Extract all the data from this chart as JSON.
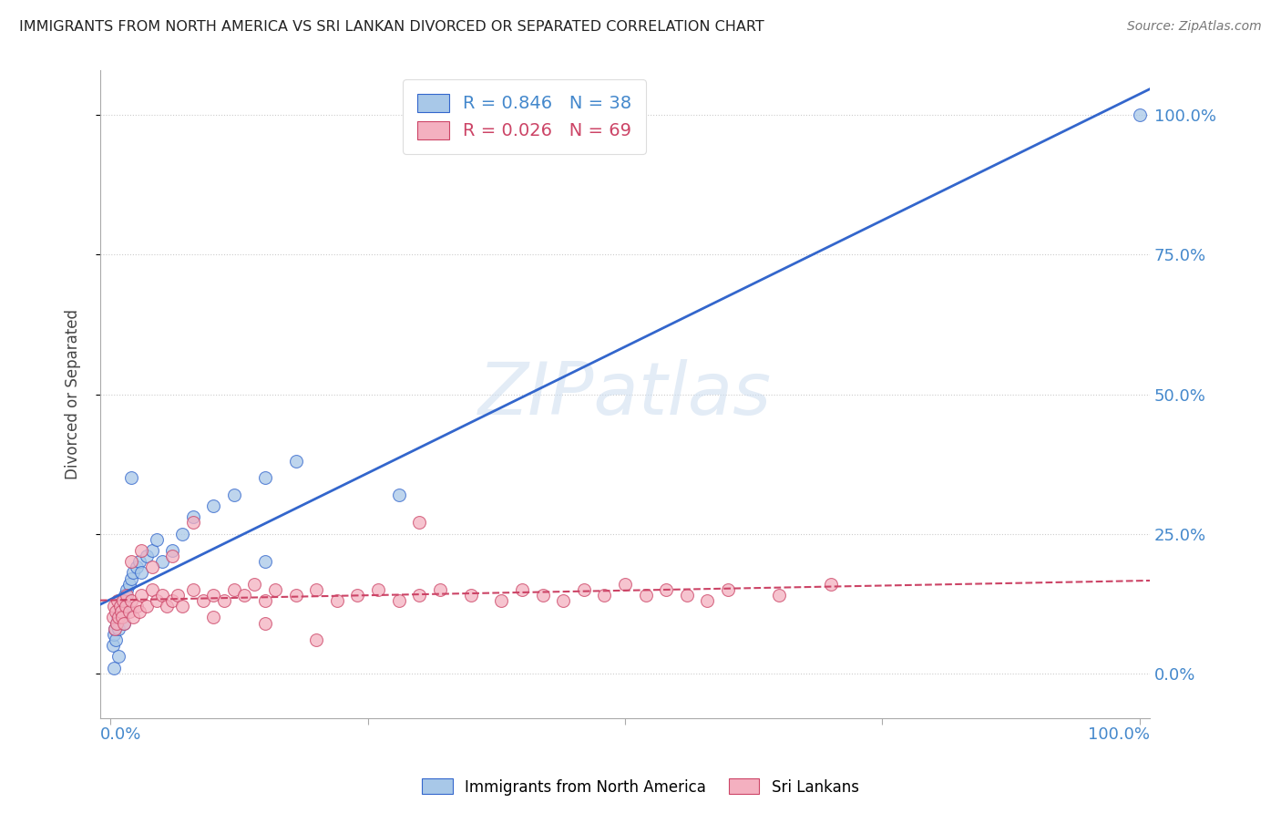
{
  "title": "IMMIGRANTS FROM NORTH AMERICA VS SRI LANKAN DIVORCED OR SEPARATED CORRELATION CHART",
  "source": "Source: ZipAtlas.com",
  "ylabel": "Divorced or Separated",
  "watermark": "ZIPatlas",
  "series1_label": "Immigrants from North America",
  "series2_label": "Sri Lankans",
  "series1_R": "0.846",
  "series1_N": "38",
  "series2_R": "0.026",
  "series2_N": "69",
  "series1_color": "#a8c8e8",
  "series2_color": "#f4b0c0",
  "trend1_color": "#3366cc",
  "trend2_color": "#cc4466",
  "ytick_labels": [
    "0.0%",
    "25.0%",
    "50.0%",
    "75.0%",
    "100.0%"
  ],
  "ytick_values": [
    0.0,
    0.25,
    0.5,
    0.75,
    1.0
  ],
  "blue_x": [
    0.002,
    0.003,
    0.004,
    0.005,
    0.006,
    0.007,
    0.008,
    0.009,
    0.01,
    0.011,
    0.012,
    0.013,
    0.014,
    0.015,
    0.016,
    0.018,
    0.02,
    0.022,
    0.025,
    0.028,
    0.03,
    0.035,
    0.04,
    0.045,
    0.05,
    0.06,
    0.07,
    0.08,
    0.1,
    0.12,
    0.15,
    0.18,
    0.02,
    0.15,
    0.28,
    1.0,
    0.003,
    0.008
  ],
  "blue_y": [
    0.05,
    0.07,
    0.08,
    0.06,
    0.09,
    0.1,
    0.08,
    0.12,
    0.1,
    0.13,
    0.11,
    0.09,
    0.14,
    0.12,
    0.15,
    0.16,
    0.17,
    0.18,
    0.19,
    0.2,
    0.18,
    0.21,
    0.22,
    0.24,
    0.2,
    0.22,
    0.25,
    0.28,
    0.3,
    0.32,
    0.35,
    0.38,
    0.35,
    0.2,
    0.32,
    1.0,
    0.01,
    0.03
  ],
  "pink_x": [
    0.002,
    0.003,
    0.004,
    0.005,
    0.006,
    0.007,
    0.008,
    0.009,
    0.01,
    0.011,
    0.012,
    0.013,
    0.015,
    0.016,
    0.018,
    0.02,
    0.022,
    0.025,
    0.028,
    0.03,
    0.035,
    0.04,
    0.045,
    0.05,
    0.055,
    0.06,
    0.065,
    0.07,
    0.08,
    0.09,
    0.1,
    0.11,
    0.12,
    0.13,
    0.14,
    0.15,
    0.16,
    0.18,
    0.2,
    0.22,
    0.24,
    0.26,
    0.28,
    0.3,
    0.32,
    0.35,
    0.38,
    0.4,
    0.42,
    0.44,
    0.46,
    0.48,
    0.5,
    0.52,
    0.54,
    0.56,
    0.58,
    0.6,
    0.65,
    0.7,
    0.02,
    0.03,
    0.04,
    0.06,
    0.08,
    0.1,
    0.15,
    0.2,
    0.3
  ],
  "pink_y": [
    0.1,
    0.12,
    0.08,
    0.11,
    0.09,
    0.13,
    0.1,
    0.12,
    0.11,
    0.1,
    0.13,
    0.09,
    0.12,
    0.14,
    0.11,
    0.13,
    0.1,
    0.12,
    0.11,
    0.14,
    0.12,
    0.15,
    0.13,
    0.14,
    0.12,
    0.13,
    0.14,
    0.12,
    0.15,
    0.13,
    0.14,
    0.13,
    0.15,
    0.14,
    0.16,
    0.13,
    0.15,
    0.14,
    0.15,
    0.13,
    0.14,
    0.15,
    0.13,
    0.14,
    0.15,
    0.14,
    0.13,
    0.15,
    0.14,
    0.13,
    0.15,
    0.14,
    0.16,
    0.14,
    0.15,
    0.14,
    0.13,
    0.15,
    0.14,
    0.16,
    0.2,
    0.22,
    0.19,
    0.21,
    0.27,
    0.1,
    0.09,
    0.06,
    0.27
  ],
  "background_color": "#ffffff",
  "grid_color": "#cccccc",
  "title_color": "#222222",
  "axis_label_color": "#4488cc"
}
